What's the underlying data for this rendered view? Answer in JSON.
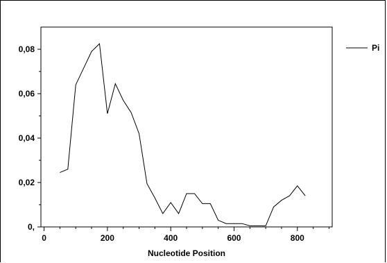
{
  "chart_data": {
    "type": "line",
    "title": "",
    "xlabel": "Nucleotide Position",
    "ylabel": "",
    "xlim": [
      -10,
      910
    ],
    "ylim": [
      0,
      0.09
    ],
    "x_ticks": [
      0,
      200,
      400,
      600,
      800
    ],
    "x_tick_labels": [
      "0",
      "200",
      "400",
      "600",
      "800"
    ],
    "y_ticks": [
      0,
      0.02,
      0.04,
      0.06,
      0.08
    ],
    "y_tick_labels": [
      "0,",
      "0,02",
      "0,04",
      "0,06",
      "0,08"
    ],
    "legend_position": "top-right",
    "grid": false,
    "series": [
      {
        "name": "Pi",
        "color": "#000000",
        "x": [
          50,
          75,
          100,
          125,
          150,
          175,
          200,
          225,
          250,
          275,
          300,
          325,
          350,
          375,
          400,
          425,
          450,
          475,
          500,
          525,
          550,
          575,
          600,
          625,
          650,
          675,
          700,
          725,
          750,
          775,
          800,
          825
        ],
        "values": [
          0.0245,
          0.026,
          0.064,
          0.0715,
          0.079,
          0.0825,
          0.051,
          0.0645,
          0.057,
          0.0515,
          0.042,
          0.0195,
          0.013,
          0.006,
          0.011,
          0.006,
          0.015,
          0.015,
          0.0105,
          0.0105,
          0.003,
          0.0015,
          0.0015,
          0.0015,
          0.0005,
          0.0005,
          0.0005,
          0.009,
          0.012,
          0.014,
          0.0185,
          0.014
        ]
      }
    ]
  }
}
